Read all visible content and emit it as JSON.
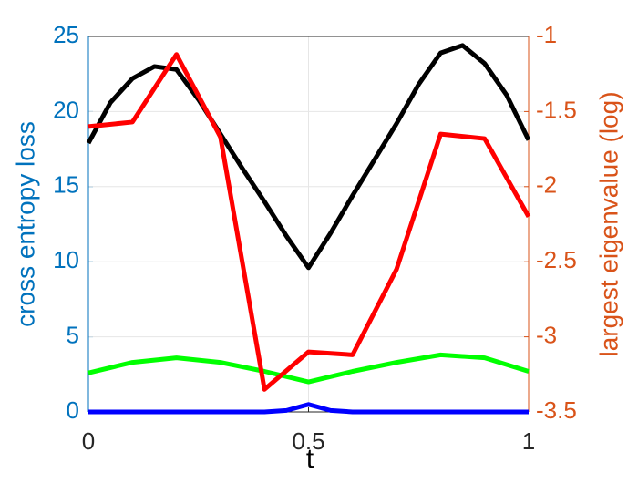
{
  "chart_data": {
    "type": "line",
    "xlabel": "t",
    "ylabel": "cross entropy loss",
    "y2label": "largest eigenvalue (log)",
    "xlim": [
      0,
      1
    ],
    "xticks": [
      0,
      0.5,
      1
    ],
    "ylim": [
      0,
      25
    ],
    "yticks": [
      0,
      5,
      10,
      15,
      20,
      25
    ],
    "y2lim": [
      -3.5,
      -1
    ],
    "y2ticks": [
      -3.5,
      -3,
      -2.5,
      -2,
      -1.5,
      -1
    ],
    "grid": true,
    "ycolor": "#0072bd",
    "y2color": "#d95319",
    "series": [
      {
        "color": "#000000",
        "x": [
          0,
          0.05,
          0.1,
          0.15,
          0.2,
          0.25,
          0.3,
          0.35,
          0.4,
          0.45,
          0.5,
          0.55,
          0.6,
          0.65,
          0.7,
          0.75,
          0.8,
          0.85,
          0.9,
          0.95,
          1
        ],
        "values": [
          17.9,
          20.6,
          22.2,
          23.0,
          22.8,
          20.8,
          18.5,
          16.2,
          14.0,
          11.7,
          9.6,
          11.9,
          14.4,
          16.8,
          19.2,
          21.8,
          23.9,
          24.4,
          23.2,
          21.1,
          18.1
        ]
      },
      {
        "color": "#00ff00",
        "x": [
          0,
          0.1,
          0.2,
          0.3,
          0.4,
          0.5,
          0.6,
          0.7,
          0.8,
          0.9,
          1
        ],
        "values": [
          2.6,
          3.3,
          3.6,
          3.3,
          2.7,
          2.0,
          2.7,
          3.3,
          3.8,
          3.6,
          2.7
        ]
      },
      {
        "color": "#0000ff",
        "x": [
          0,
          0.1,
          0.2,
          0.3,
          0.4,
          0.45,
          0.5,
          0.55,
          0.6,
          0.7,
          0.8,
          0.9,
          1
        ],
        "values": [
          0,
          0,
          0,
          0,
          0,
          0.1,
          0.5,
          0.1,
          0,
          0,
          0,
          0,
          0
        ]
      },
      {
        "color": "#ff0000",
        "axis": "y2",
        "x": [
          0,
          0.1,
          0.2,
          0.3,
          0.4,
          0.5,
          0.6,
          0.7,
          0.8,
          0.9,
          1
        ],
        "values": [
          -1.6,
          -1.57,
          -1.12,
          -1.67,
          -3.35,
          -3.1,
          -3.12,
          -2.55,
          -1.65,
          -1.68,
          -2.2
        ]
      }
    ]
  }
}
